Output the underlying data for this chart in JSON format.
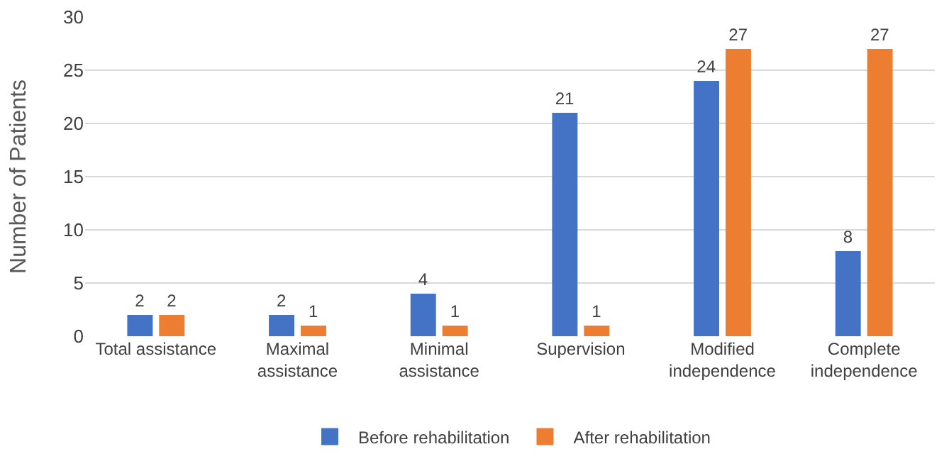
{
  "chart_data": {
    "type": "bar",
    "ylabel": "Number of Patients",
    "categories": [
      "Total assistance",
      "Maximal assistance",
      "Minimal assistance",
      "Supervision",
      "Modified independence",
      "Complete independence"
    ],
    "series": [
      {
        "name": "Before rehabilitation",
        "color": "#4472c4",
        "values": [
          2,
          2,
          4,
          21,
          24,
          8
        ]
      },
      {
        "name": "After rehabilitation",
        "color": "#ed7d31",
        "values": [
          2,
          1,
          1,
          1,
          27,
          27
        ]
      }
    ],
    "ylim": [
      0,
      30
    ],
    "yticks": [
      0,
      5,
      10,
      15,
      20,
      25,
      30
    ],
    "grid": "y",
    "legend": "bottom",
    "data_labels": true
  }
}
